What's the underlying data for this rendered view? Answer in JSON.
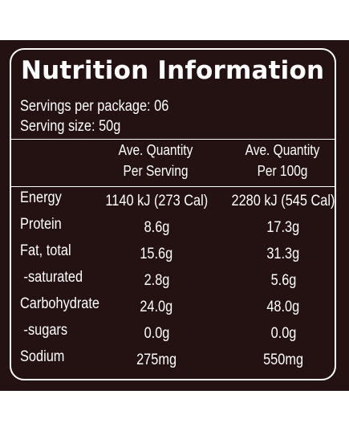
{
  "panel": {
    "title": "Nutrition Information",
    "servings_per_package": "Servings per package: 06",
    "serving_size": "Serving size: 50g",
    "columns": {
      "per_serving_line1": "Ave. Quantity",
      "per_serving_line2": "Per Serving",
      "per_100g_line1": "Ave. Quantity",
      "per_100g_line2": "Per 100g"
    },
    "rows": [
      {
        "name": "Energy",
        "per_serving": "1140 kJ (273 Cal)",
        "per_100g": "2280 kJ (545 Cal)"
      },
      {
        "name": "Protein",
        "per_serving": "8.6g",
        "per_100g": "17.3g"
      },
      {
        "name": "Fat, total",
        "per_serving": "15.6g",
        "per_100g": "31.3g"
      },
      {
        "name": " -saturated",
        "per_serving": "2.8g",
        "per_100g": "5.6g"
      },
      {
        "name": "Carbohydrate",
        "per_serving": "24.0g",
        "per_100g": "48.0g"
      },
      {
        "name": " -sugars",
        "per_serving": "0.0g",
        "per_100g": "0.0g"
      },
      {
        "name": "Sodium",
        "per_serving": "275mg",
        "per_100g": "550mg"
      }
    ]
  },
  "colors": {
    "panel_background": "#241213",
    "text": "#ffffff",
    "page_background": "#ffffff"
  }
}
